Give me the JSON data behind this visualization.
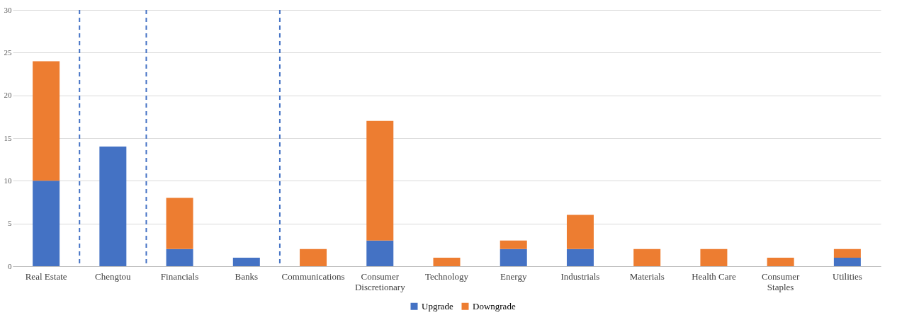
{
  "chart_data": {
    "type": "bar",
    "stacked": true,
    "categories": [
      "Real Estate",
      "Chengtou",
      "Financials",
      "Banks",
      "Communications",
      "Consumer Discretionary",
      "Technology",
      "Energy",
      "Industrials",
      "Materials",
      "Health Care",
      "Consumer Staples",
      "Utilities"
    ],
    "series": [
      {
        "name": "Upgrade",
        "color": "#4472c4",
        "values": [
          10,
          14,
          2,
          1,
          0,
          3,
          0,
          2,
          2,
          0,
          0,
          0,
          1
        ]
      },
      {
        "name": "Downgrade",
        "color": "#ed7d31",
        "values": [
          14,
          0,
          6,
          0,
          2,
          14,
          1,
          1,
          4,
          2,
          2,
          1,
          1
        ]
      }
    ],
    "ylim": [
      0,
      30
    ],
    "yticks": [
      0,
      5,
      10,
      15,
      20,
      25,
      30
    ],
    "grid": "y",
    "legend": "bottom"
  }
}
